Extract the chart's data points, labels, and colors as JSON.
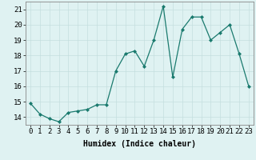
{
  "x": [
    0,
    1,
    2,
    3,
    4,
    5,
    6,
    7,
    8,
    9,
    10,
    11,
    12,
    13,
    14,
    15,
    16,
    17,
    18,
    19,
    20,
    21,
    22,
    23
  ],
  "y": [
    14.9,
    14.2,
    13.9,
    13.7,
    14.3,
    14.4,
    14.5,
    14.8,
    14.8,
    17.0,
    18.1,
    18.3,
    17.3,
    19.0,
    21.2,
    16.6,
    19.7,
    20.5,
    20.5,
    19.0,
    19.5,
    20.0,
    18.1,
    16.0
  ],
  "xlabel": "Humidex (Indice chaleur)",
  "ylim": [
    13.5,
    21.5
  ],
  "xlim": [
    -0.5,
    23.5
  ],
  "yticks": [
    14,
    15,
    16,
    17,
    18,
    19,
    20,
    21
  ],
  "xticks": [
    0,
    1,
    2,
    3,
    4,
    5,
    6,
    7,
    8,
    9,
    10,
    11,
    12,
    13,
    14,
    15,
    16,
    17,
    18,
    19,
    20,
    21,
    22,
    23
  ],
  "line_color": "#1a7a6e",
  "marker": "D",
  "marker_size": 2.0,
  "bg_color": "#dff2f2",
  "grid_color": "#c4dede",
  "label_fontsize": 7,
  "tick_fontsize": 6.5
}
